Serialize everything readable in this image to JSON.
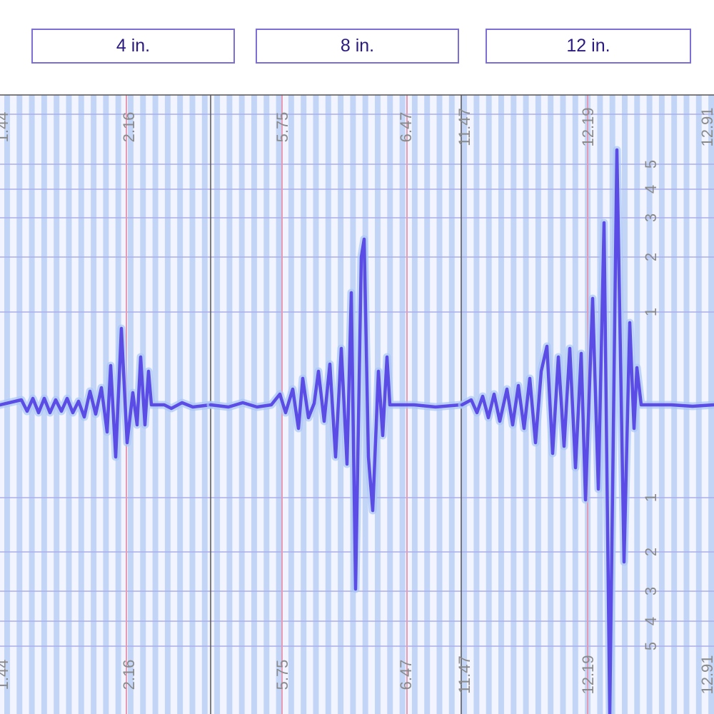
{
  "buttons": [
    "4 in.",
    "8 in.",
    "12 in."
  ],
  "panels": [
    {
      "top_labels": [
        "1.44",
        "2.16"
      ],
      "bottom_labels": [
        "1.44",
        "2.16"
      ]
    },
    {
      "top_labels": [
        "5.75",
        "6.47"
      ],
      "bottom_labels": [
        "5.75",
        "6.47"
      ]
    },
    {
      "top_labels": [
        "11.47",
        "12.19",
        "12.91"
      ],
      "bottom_labels": [
        "11.47",
        "12.19",
        "12.91"
      ]
    }
  ],
  "amplitude_labels": {
    "upper": [
      "5",
      "4",
      "3",
      "2",
      "1"
    ],
    "lower": [
      "1",
      "2",
      "3",
      "4",
      "5"
    ]
  }
}
